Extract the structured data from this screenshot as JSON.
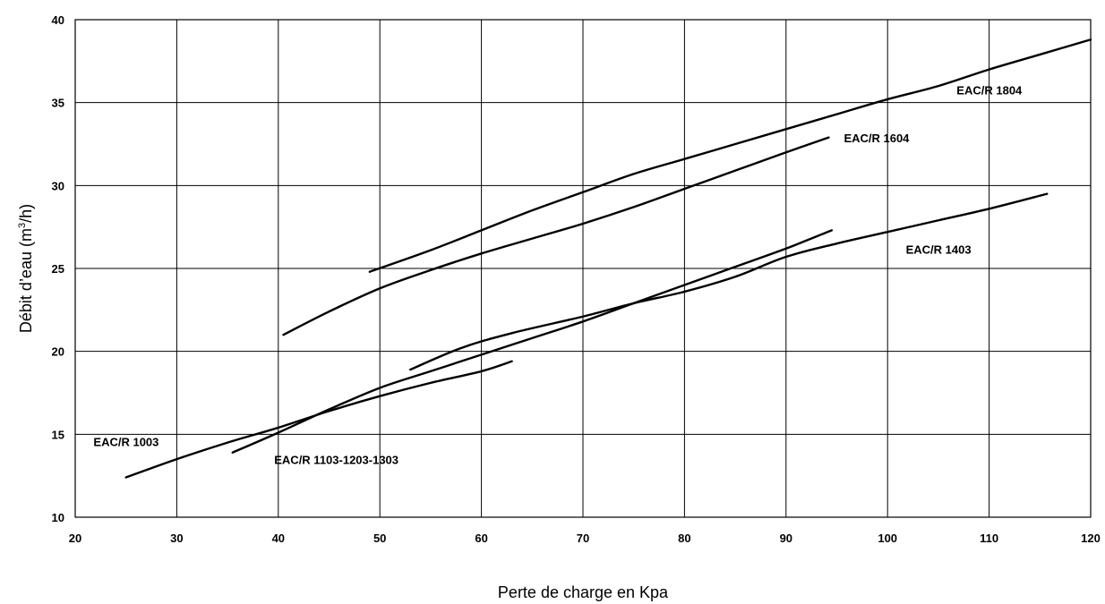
{
  "chart_data": {
    "type": "line",
    "title": "",
    "xlabel": "Perte de charge en Kpa",
    "ylabel_main": "Débit d’eau (m",
    "ylabel_sup": "3",
    "ylabel_end": "/h)",
    "xlim": [
      20,
      120
    ],
    "ylim": [
      10,
      40
    ],
    "xticks": [
      20,
      30,
      40,
      50,
      60,
      70,
      80,
      90,
      100,
      110,
      120
    ],
    "yticks": [
      10,
      15,
      20,
      25,
      30,
      35,
      40
    ],
    "grid": true,
    "series": [
      {
        "name": "EAC/R 1003",
        "x": [
          25,
          30,
          35,
          40,
          45,
          50,
          55,
          60,
          63
        ],
        "y": [
          12.4,
          13.5,
          14.5,
          15.4,
          16.4,
          17.3,
          18.1,
          18.8,
          19.4
        ]
      },
      {
        "name": "EAC/R 1103-1203-1303",
        "x": [
          35.5,
          40,
          45,
          50,
          55,
          60,
          65,
          70,
          75,
          80,
          85,
          90,
          94.5
        ],
        "y": [
          13.9,
          15.1,
          16.5,
          17.8,
          18.8,
          19.8,
          20.8,
          21.8,
          22.9,
          24.0,
          25.1,
          26.2,
          27.3
        ]
      },
      {
        "name": "EAC/R 1403",
        "x": [
          53,
          58,
          63,
          70,
          75,
          80,
          85,
          90,
          95,
          100,
          105,
          110,
          115.7
        ],
        "y": [
          18.9,
          20.2,
          21.1,
          22.1,
          22.9,
          23.6,
          24.5,
          25.7,
          26.5,
          27.2,
          27.9,
          28.6,
          29.5
        ]
      },
      {
        "name": "EAC/R 1604",
        "x": [
          40.5,
          45,
          50,
          55,
          60,
          65,
          70,
          75,
          80,
          85,
          90,
          94.2
        ],
        "y": [
          21.0,
          22.4,
          23.8,
          24.9,
          25.9,
          26.8,
          27.7,
          28.7,
          29.8,
          30.9,
          32.0,
          32.9
        ]
      },
      {
        "name": "EAC/R 1804",
        "x": [
          49,
          55,
          60,
          65,
          70,
          75,
          80,
          85,
          90,
          95,
          100,
          105,
          110,
          115,
          120
        ],
        "y": [
          24.8,
          26.1,
          27.3,
          28.5,
          29.6,
          30.7,
          31.6,
          32.5,
          33.4,
          34.3,
          35.2,
          36.0,
          37.0,
          37.9,
          38.8
        ]
      }
    ]
  }
}
